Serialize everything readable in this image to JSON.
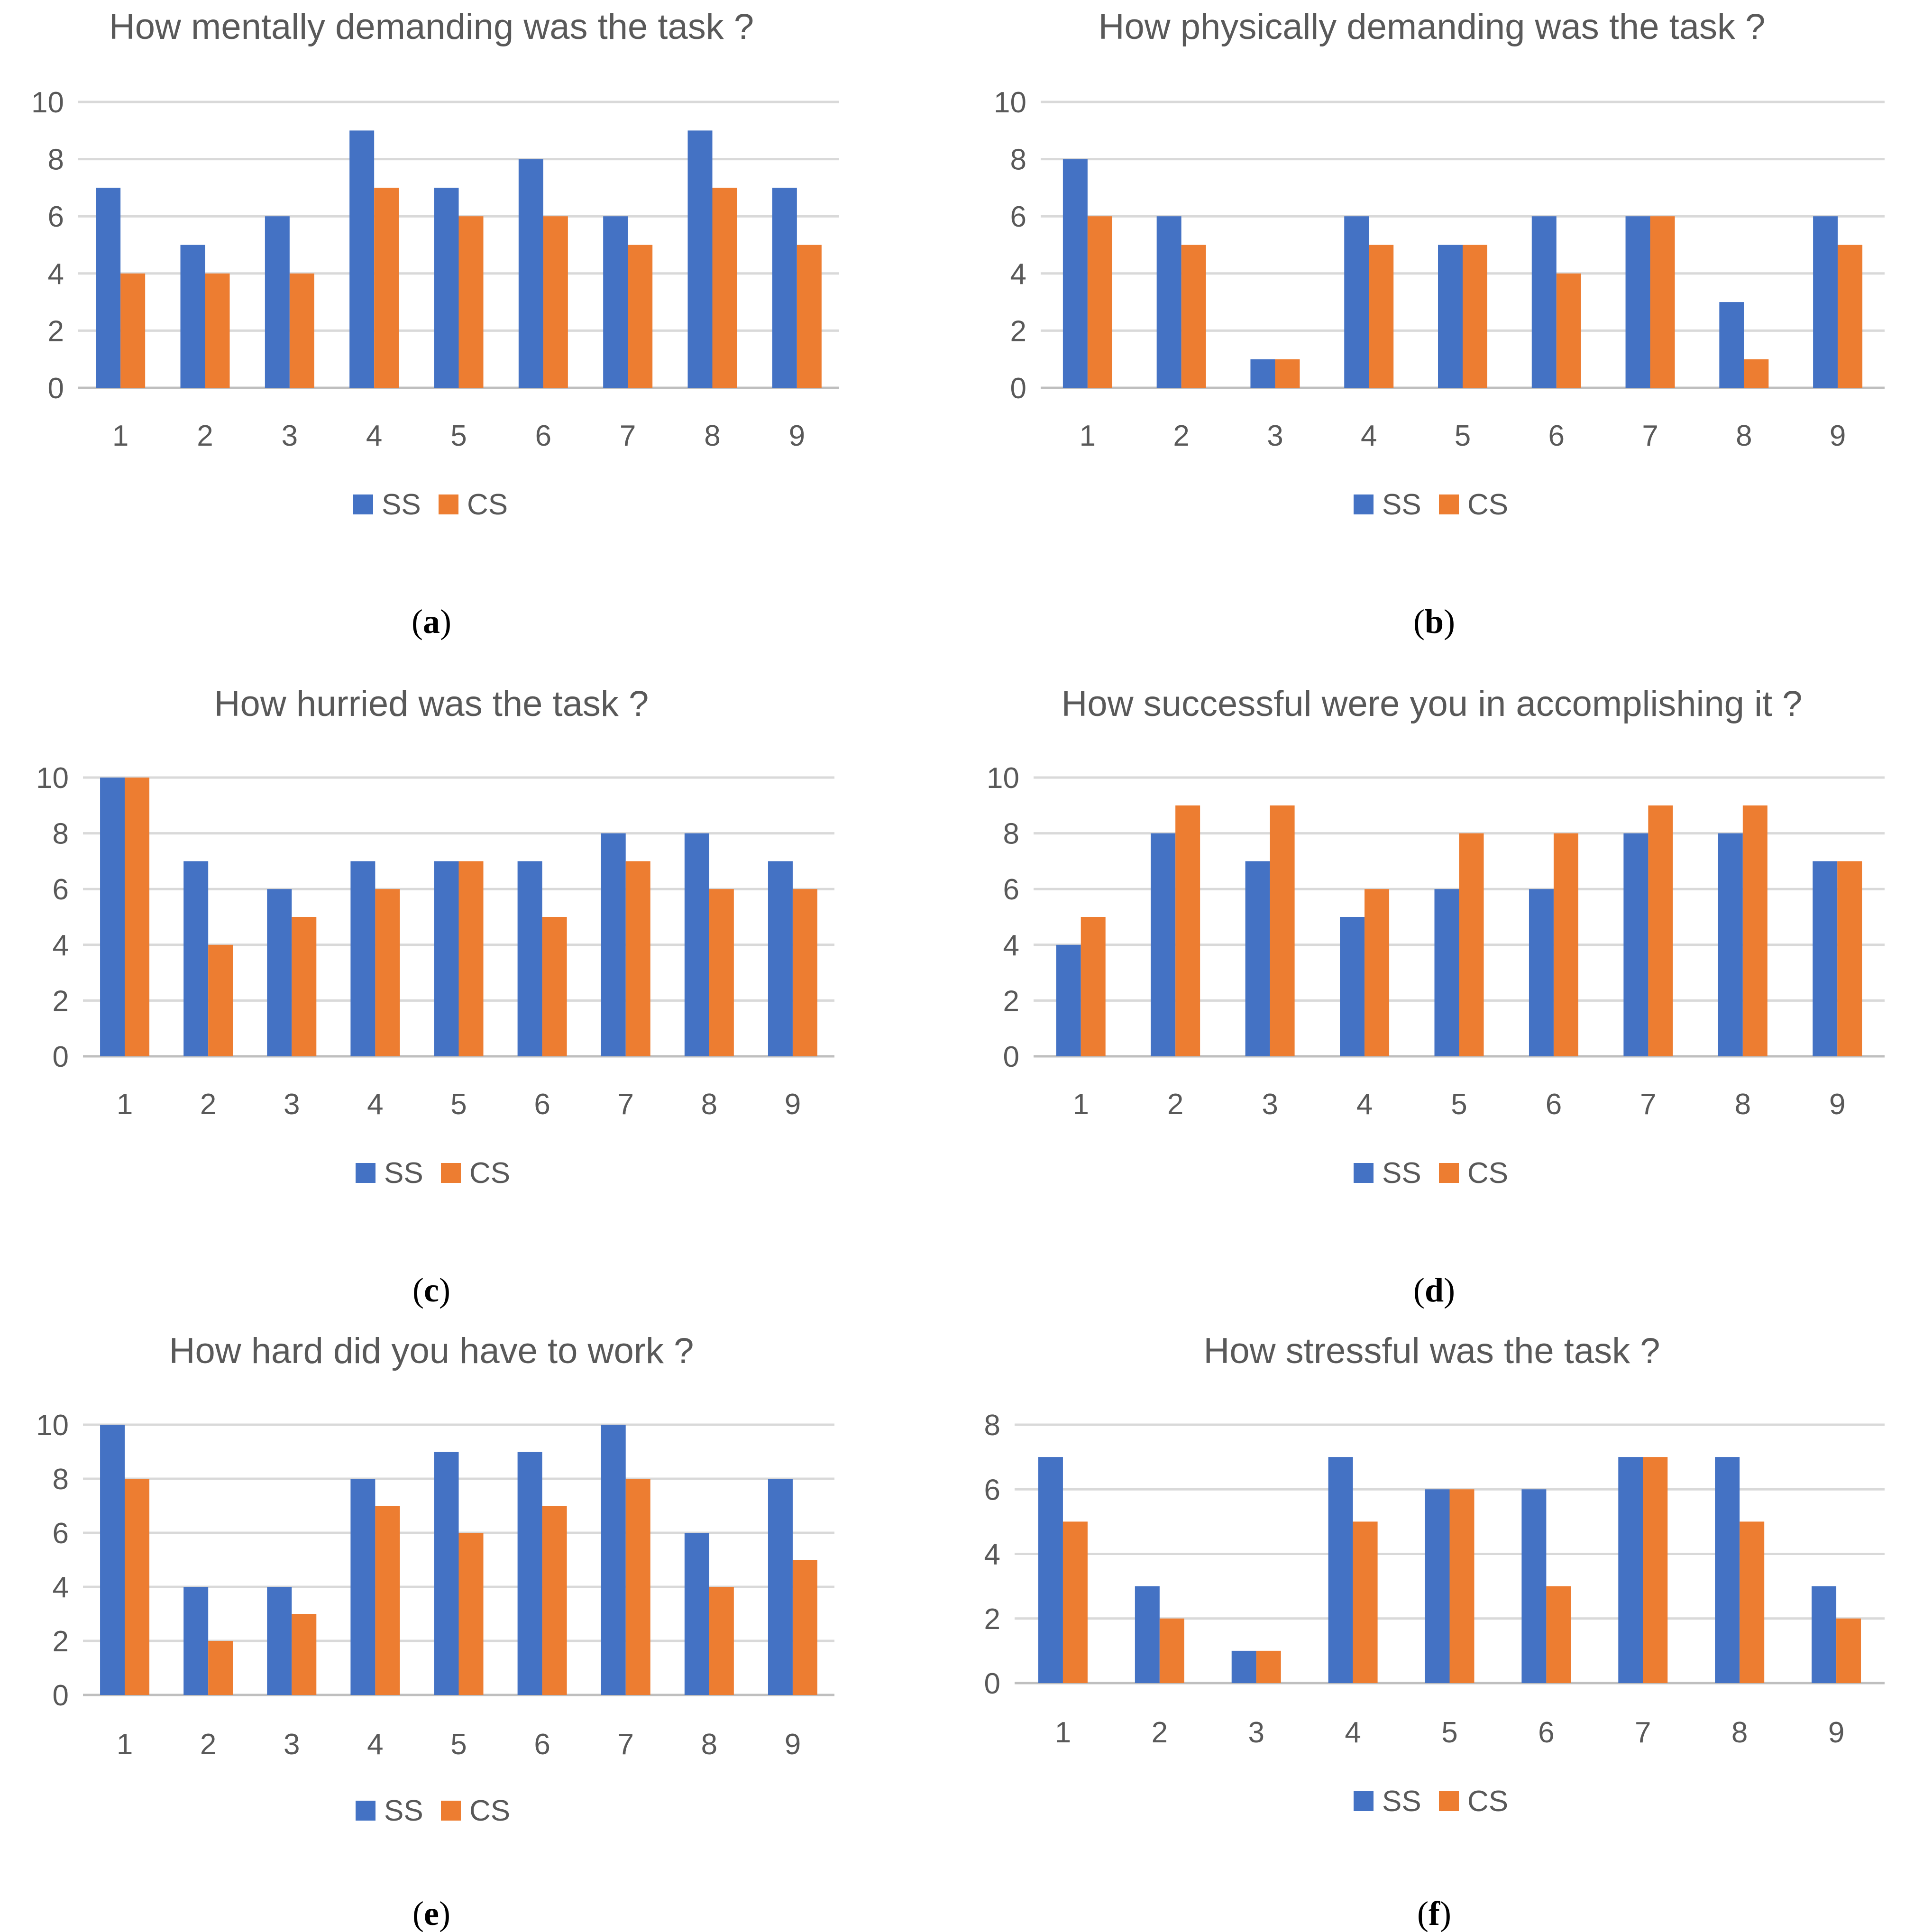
{
  "colors": {
    "ss": "#4472c4",
    "cs": "#ed7d31"
  },
  "legend": {
    "ss_label": "SS",
    "cs_label": "CS"
  },
  "chart_data": [
    {
      "type": "bar",
      "panel": "a",
      "title": "How mentally demanding was the task ?",
      "categories": [
        "1",
        "2",
        "3",
        "4",
        "5",
        "6",
        "7",
        "8",
        "9"
      ],
      "ylim": [
        0,
        10
      ],
      "yticks": [
        0,
        2,
        4,
        6,
        8,
        10
      ],
      "series": [
        {
          "name": "SS",
          "values": [
            7,
            5,
            6,
            9,
            7,
            8,
            6,
            9,
            7
          ]
        },
        {
          "name": "CS",
          "values": [
            4,
            4,
            4,
            7,
            6,
            6,
            5,
            7,
            5
          ]
        }
      ]
    },
    {
      "type": "bar",
      "panel": "b",
      "title": "How physically demanding was the task ?",
      "categories": [
        "1",
        "2",
        "3",
        "4",
        "5",
        "6",
        "7",
        "8",
        "9"
      ],
      "ylim": [
        0,
        10
      ],
      "yticks": [
        0,
        2,
        4,
        6,
        8,
        10
      ],
      "series": [
        {
          "name": "SS",
          "values": [
            8,
            6,
            1,
            6,
            5,
            6,
            6,
            3,
            6
          ]
        },
        {
          "name": "CS",
          "values": [
            6,
            5,
            1,
            5,
            5,
            4,
            6,
            1,
            5
          ]
        }
      ]
    },
    {
      "type": "bar",
      "panel": "c",
      "title": "How hurried was the task ?",
      "categories": [
        "1",
        "2",
        "3",
        "4",
        "5",
        "6",
        "7",
        "8",
        "9"
      ],
      "ylim": [
        0,
        10
      ],
      "yticks": [
        0,
        2,
        4,
        6,
        8,
        10
      ],
      "series": [
        {
          "name": "SS",
          "values": [
            10,
            7,
            6,
            7,
            7,
            7,
            8,
            8,
            7
          ]
        },
        {
          "name": "CS",
          "values": [
            10,
            4,
            5,
            6,
            7,
            5,
            7,
            6,
            6
          ]
        }
      ]
    },
    {
      "type": "bar",
      "panel": "d",
      "title": "How successful were you in accomplishing it ?",
      "categories": [
        "1",
        "2",
        "3",
        "4",
        "5",
        "6",
        "7",
        "8",
        "9"
      ],
      "ylim": [
        0,
        10
      ],
      "yticks": [
        0,
        2,
        4,
        6,
        8,
        10
      ],
      "series": [
        {
          "name": "SS",
          "values": [
            4,
            8,
            7,
            5,
            6,
            6,
            8,
            8,
            7
          ]
        },
        {
          "name": "CS",
          "values": [
            5,
            9,
            9,
            6,
            8,
            8,
            9,
            9,
            7
          ]
        }
      ]
    },
    {
      "type": "bar",
      "panel": "e",
      "title": "How hard did you have to work ?",
      "categories": [
        "1",
        "2",
        "3",
        "4",
        "5",
        "6",
        "7",
        "8",
        "9"
      ],
      "ylim": [
        0,
        10
      ],
      "yticks": [
        0,
        2,
        4,
        6,
        8,
        10
      ],
      "series": [
        {
          "name": "SS",
          "values": [
            10,
            4,
            4,
            8,
            9,
            9,
            10,
            6,
            8
          ]
        },
        {
          "name": "CS",
          "values": [
            8,
            2,
            3,
            7,
            6,
            7,
            8,
            4,
            5
          ]
        }
      ]
    },
    {
      "type": "bar",
      "panel": "f",
      "title": "How stressful was the task ?",
      "categories": [
        "1",
        "2",
        "3",
        "4",
        "5",
        "6",
        "7",
        "8",
        "9"
      ],
      "ylim": [
        0,
        8
      ],
      "yticks": [
        0,
        2,
        4,
        6,
        8
      ],
      "series": [
        {
          "name": "SS",
          "values": [
            7,
            3,
            1,
            7,
            6,
            6,
            7,
            7,
            3
          ]
        },
        {
          "name": "CS",
          "values": [
            5,
            2,
            1,
            5,
            6,
            3,
            7,
            5,
            2
          ]
        }
      ]
    }
  ]
}
